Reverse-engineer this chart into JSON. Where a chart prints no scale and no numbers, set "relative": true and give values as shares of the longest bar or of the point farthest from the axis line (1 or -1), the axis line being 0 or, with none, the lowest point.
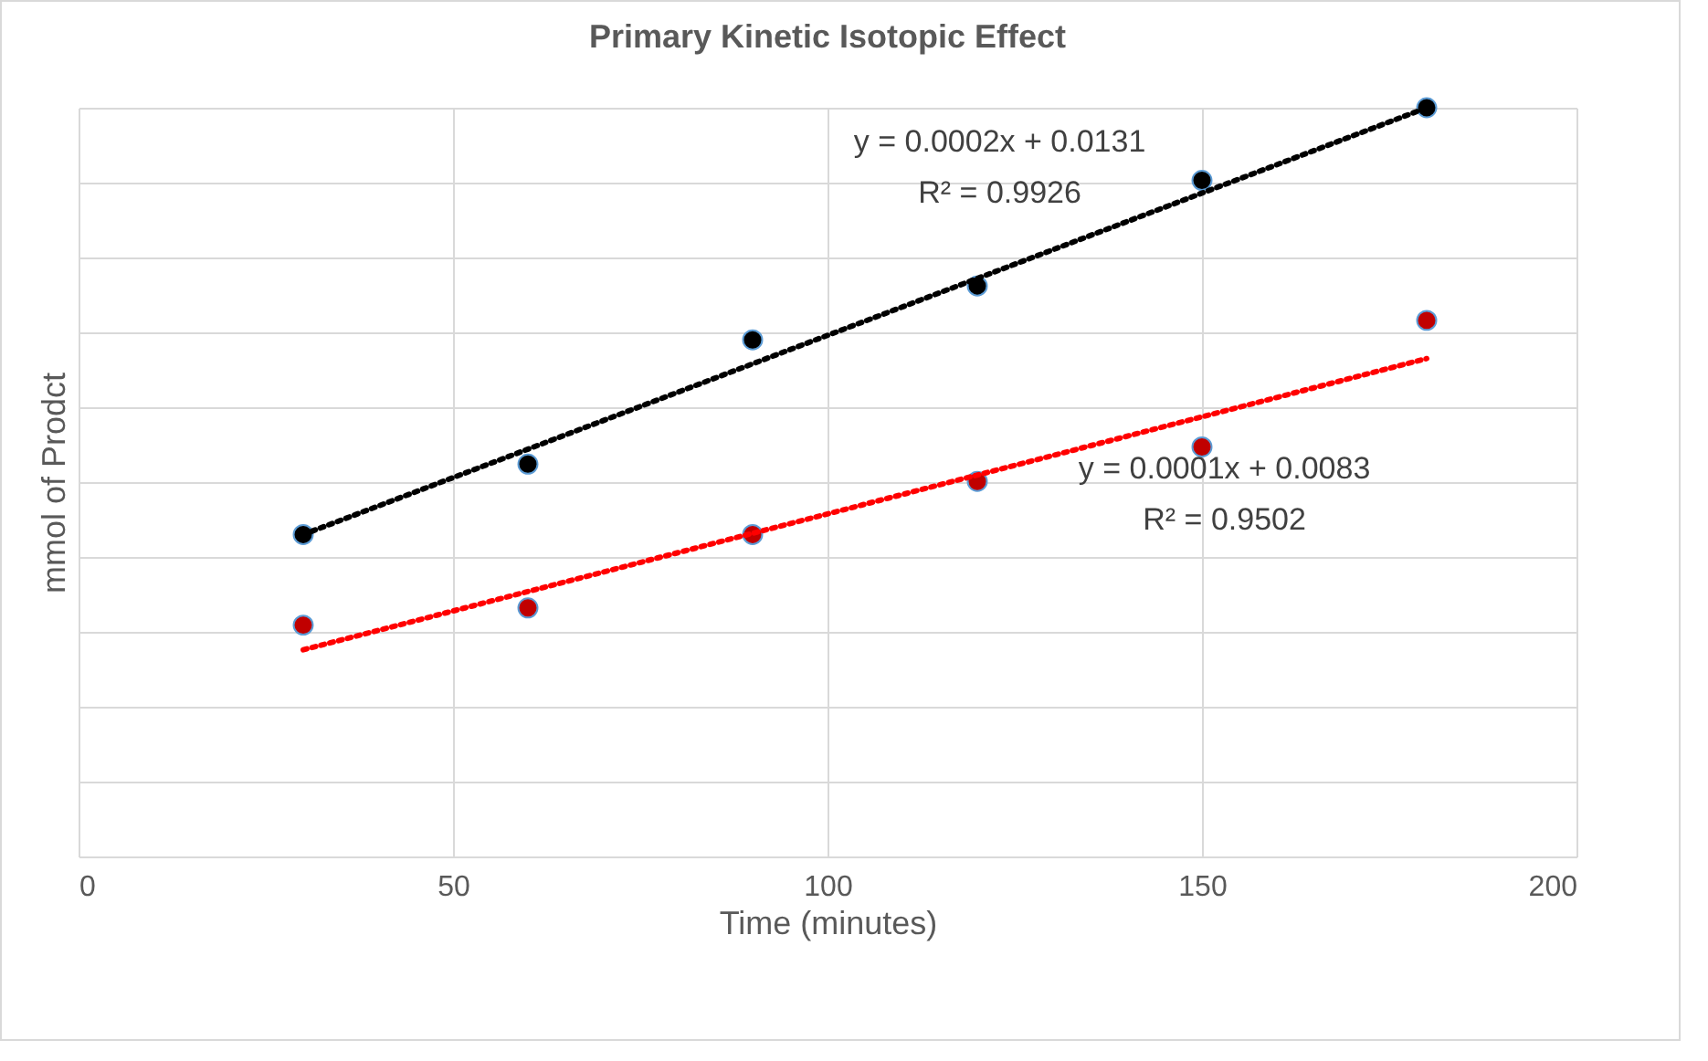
{
  "chart_data": {
    "type": "scatter",
    "title": "Primary Kinetic Isotopic Effect",
    "xlabel": "Time (minutes)",
    "ylabel": "mmol of Prodct",
    "relative": true,
    "xlim": [
      0,
      200
    ],
    "xticks": [
      0,
      50,
      100,
      150,
      200
    ],
    "grid": true,
    "tick_labels": "x",
    "series": [
      {
        "marker": "circle",
        "color": "#000000",
        "x": [
          30,
          60,
          90,
          120,
          150,
          180
        ],
        "values": [
          0.43,
          0.524,
          0.69,
          0.762,
          0.903,
          1
        ]
      },
      {
        "marker": "circle",
        "color": "#c00000",
        "x": [
          30,
          60,
          90,
          120,
          150,
          180
        ],
        "values": [
          0.309,
          0.332,
          0.43,
          0.501,
          0.547,
          0.716
        ]
      },
      {
        "type": "line",
        "line_style": "dotted",
        "color": "#000000",
        "x": [
          30,
          180
        ],
        "values": [
          0.43,
          1
        ]
      },
      {
        "type": "line",
        "line_style": "dotted",
        "color": "#ff0000",
        "x": [
          30,
          180
        ],
        "values": [
          0.276,
          0.665
        ]
      }
    ],
    "annotations": [
      "y = 0.0002x + 0.0131",
      "R² = 0.9926",
      "y = 0.0001x + 0.0083",
      "R² = 0.9502"
    ]
  }
}
